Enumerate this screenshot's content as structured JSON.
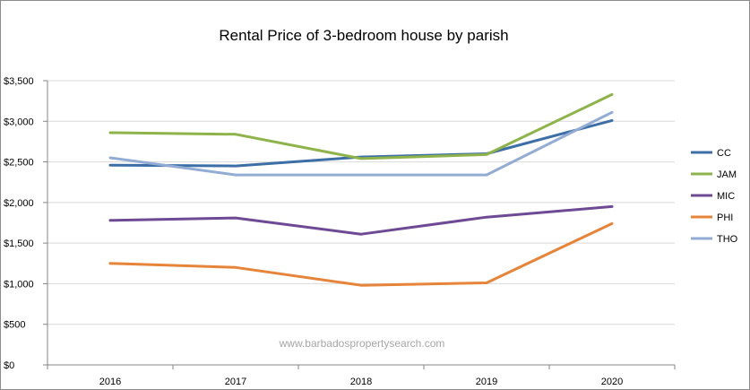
{
  "chart_data": {
    "type": "line",
    "title": "Rental Price of 3-bedroom house by parish",
    "xlabel": "",
    "ylabel": "",
    "categories": [
      "2016",
      "2017",
      "2018",
      "2019",
      "2020"
    ],
    "ylim": [
      0,
      3500
    ],
    "yticks": [
      "$0",
      "$500",
      "$1,000",
      "$1,500",
      "$2,000",
      "$2,500",
      "$3,000",
      "$3,500"
    ],
    "grid": true,
    "legend_position": "right",
    "series": [
      {
        "name": "CC",
        "color": "#3d6fa6",
        "values": [
          2460,
          2450,
          2560,
          2600,
          3010
        ]
      },
      {
        "name": "JAM",
        "color": "#8db34a",
        "values": [
          2860,
          2840,
          2540,
          2590,
          3330
        ]
      },
      {
        "name": "MIC",
        "color": "#6e4a94",
        "values": [
          1780,
          1810,
          1610,
          1820,
          1950
        ]
      },
      {
        "name": "PHI",
        "color": "#e6843a",
        "values": [
          1250,
          1200,
          980,
          1010,
          1740
        ]
      },
      {
        "name": "THO",
        "color": "#93acd4",
        "values": [
          2550,
          2340,
          2340,
          2340,
          3110
        ]
      }
    ],
    "watermark": "www.barbadospropertysearch.com"
  }
}
